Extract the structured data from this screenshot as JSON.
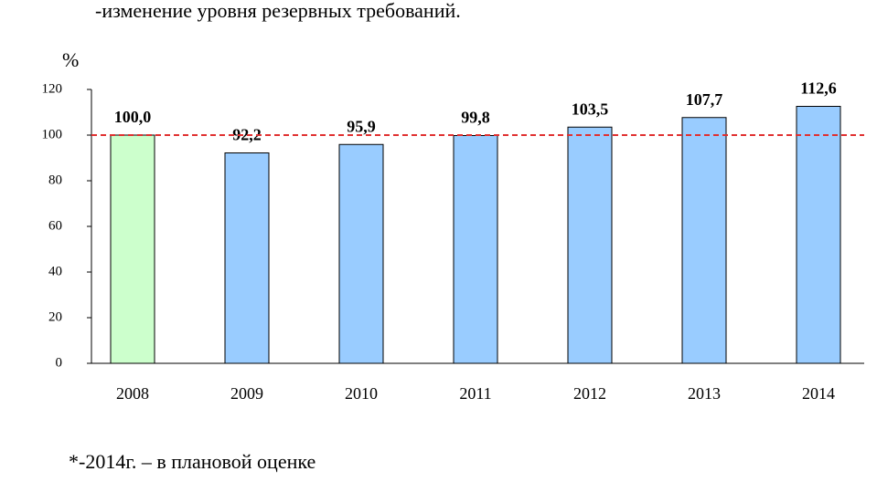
{
  "heading": "-изменение уровня резервных требований.",
  "footnote": "*-2014г. – в плановой оценке",
  "chart_data": {
    "type": "bar",
    "ylabel": "%",
    "categories": [
      "2008",
      "2009",
      "2010",
      "2011",
      "2012",
      "2013",
      "2014"
    ],
    "values": [
      100.0,
      92.2,
      95.9,
      99.8,
      103.5,
      107.7,
      112.6
    ],
    "value_labels": [
      "100,0",
      "92,2",
      "95,9",
      "99,8",
      "103,5",
      "107,7",
      "112,6"
    ],
    "colors": [
      "#ccffcc",
      "#99ccff",
      "#99ccff",
      "#99ccff",
      "#99ccff",
      "#99ccff",
      "#99ccff"
    ],
    "ylim": [
      0,
      120
    ],
    "yticks": [
      0,
      20,
      40,
      60,
      80,
      100,
      120
    ],
    "reference_line": {
      "value": 100,
      "color": "#e03030"
    }
  }
}
